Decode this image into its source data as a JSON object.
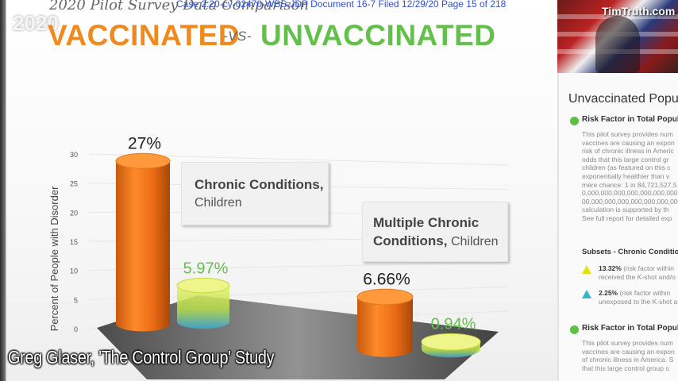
{
  "slide": {
    "survey_title": "2020 Pilot Survey Data Comparison",
    "court_stamp": "Case 2:20-cv-02470-WBS-JDP   Document 16-7   Filed 12/29/20   Page 15 of 218",
    "headline_left": "VACCINATED",
    "headline_vs": "-VS-",
    "headline_right": "UNVACCINATED",
    "ghost_year": "2020"
  },
  "colors": {
    "vaccinated": "#f08a1c",
    "unvaccinated": "#63c04a",
    "stamp": "#2b4fd9"
  },
  "chart_data": {
    "type": "bar",
    "ylabel": "Percent of People with Disorder",
    "ylim": [
      0,
      30
    ],
    "yticks": [
      "0",
      "5",
      "10",
      "15",
      "20",
      "25",
      "30"
    ],
    "categories": [
      "Chronic Conditions, Children",
      "Multiple Chronic Conditions, Children"
    ],
    "category_labels": [
      {
        "bold": "Chronic Conditions,",
        "normal": "Children"
      },
      {
        "bold_line1": "Multiple Chronic",
        "bold_line2": "Conditions,",
        "normal": "Children"
      }
    ],
    "series": [
      {
        "values": [
          27,
          6.66
        ],
        "labels": [
          "27%",
          "6.66%"
        ]
      },
      {
        "values": [
          5.97,
          0.94
        ],
        "labels": [
          "5.97%",
          "0.94%"
        ]
      }
    ]
  },
  "panel": {
    "title": "Unvaccinated Popu",
    "risk_head_1": "Risk Factor in Total Popula",
    "para_1": [
      "This pilot survey provides num",
      "vaccines are causing an expon",
      "risk of chronic illness in Americ",
      "odds that this large control gr",
      "children (as featured on this c",
      "exponentially healthier than v",
      "mere chance: 1 in 84,721,527,5",
      "0,000,000,000,000,000,000,000",
      "00,000,000,000,000,000,000,000",
      "calculation is supported by th",
      "See full report for detailed exp"
    ],
    "subset_head": "Subsets - Chronic Conditio",
    "subset_1_value": "13.32%",
    "subset_1_line1": " (risk factor within",
    "subset_1_line2": "received the K-shot and/o",
    "subset_2_value": "2.25%",
    "subset_2_line1": " (risk factor within",
    "subset_2_line2": "unexposed to the K-shot a",
    "risk_head_2": "Risk Factor in Total Popula",
    "para_2": [
      "This pilot survey provides num",
      "vaccines are causing an expon",
      "of chronic illness in America. S",
      "that this large control group o"
    ]
  },
  "webcam": {
    "watermark": "TimTruth.com"
  },
  "caption": "Greg Glaser, 'The Control Group' Study"
}
